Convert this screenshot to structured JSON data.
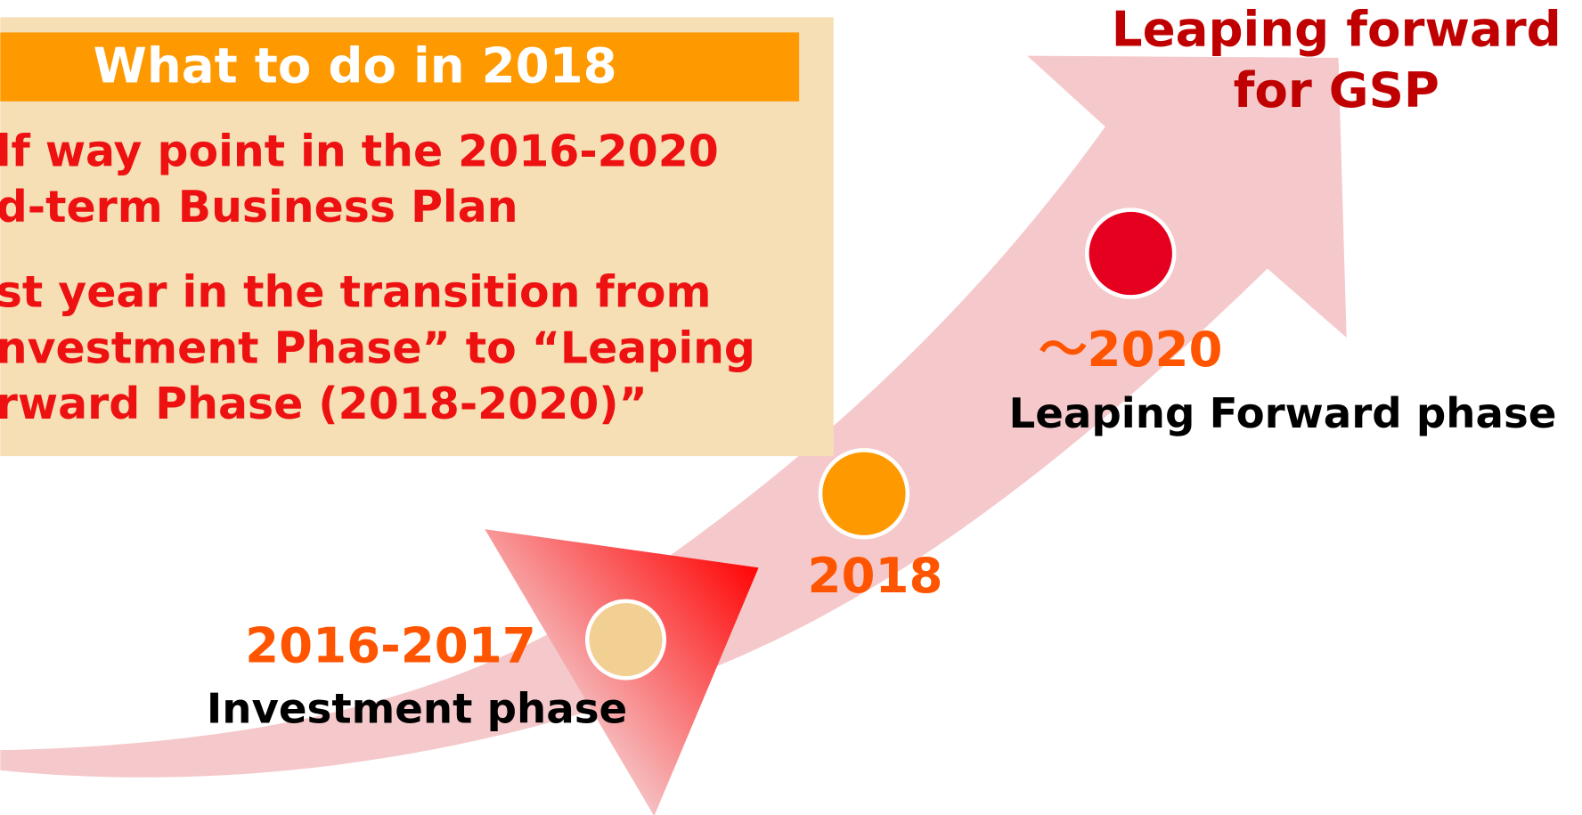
{
  "info_box": {
    "title": "What to do in 2018",
    "lines": [
      "lf way point in the 2016-2020",
      "d-term Business Plan",
      "st year in the transition from",
      "nvestment Phase” to “Leaping",
      "rward Phase (2018-2020)”"
    ]
  },
  "phases": [
    {
      "period": "2016-2017",
      "label": "Investment phase"
    },
    {
      "period": "2018"
    },
    {
      "period": "～2020",
      "label": "Leaping Forward phase"
    }
  ],
  "goal": {
    "lines": [
      "Leaping forward",
      "for GSP"
    ]
  }
}
